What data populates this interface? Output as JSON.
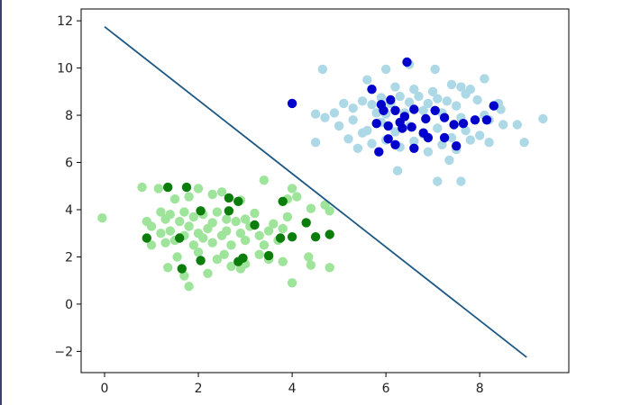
{
  "chart_data": {
    "type": "scatter",
    "title": "",
    "xlabel": "",
    "ylabel": "",
    "xlim": [
      -0.5,
      9.9
    ],
    "ylim": [
      -2.9,
      12.5
    ],
    "xticks": [
      0,
      2,
      4,
      6,
      8
    ],
    "yticks": [
      -2,
      0,
      2,
      4,
      6,
      8,
      10,
      12
    ],
    "grid": false,
    "legend": "none",
    "series": [
      {
        "color": "#9ee49b",
        "points": [
          [
            -0.05,
            3.65
          ],
          [
            0.8,
            4.95
          ],
          [
            1.15,
            4.9
          ],
          [
            1.5,
            4.45
          ],
          [
            1.8,
            4.55
          ],
          [
            2.0,
            4.9
          ],
          [
            2.3,
            4.65
          ],
          [
            2.5,
            4.75
          ],
          [
            2.9,
            4.4
          ],
          [
            3.4,
            5.25
          ],
          [
            3.9,
            4.45
          ],
          [
            4.0,
            4.9
          ],
          [
            4.1,
            4.55
          ],
          [
            4.4,
            4.05
          ],
          [
            4.7,
            4.2
          ],
          [
            4.8,
            3.95
          ],
          [
            0.9,
            3.5
          ],
          [
            1.0,
            3.3
          ],
          [
            1.2,
            3.9
          ],
          [
            1.3,
            3.6
          ],
          [
            1.4,
            3.8
          ],
          [
            1.6,
            3.5
          ],
          [
            1.7,
            3.9
          ],
          [
            1.9,
            3.7
          ],
          [
            2.1,
            3.8
          ],
          [
            2.3,
            3.45
          ],
          [
            2.4,
            3.9
          ],
          [
            2.6,
            3.6
          ],
          [
            2.8,
            3.5
          ],
          [
            3.0,
            3.6
          ],
          [
            3.2,
            3.85
          ],
          [
            3.6,
            3.4
          ],
          [
            3.9,
            3.7
          ],
          [
            1.0,
            2.5
          ],
          [
            1.2,
            3.0
          ],
          [
            1.3,
            2.6
          ],
          [
            1.4,
            3.1
          ],
          [
            1.5,
            2.7
          ],
          [
            1.7,
            2.9
          ],
          [
            1.8,
            3.3
          ],
          [
            1.9,
            2.5
          ],
          [
            2.0,
            3.0
          ],
          [
            2.1,
            2.8
          ],
          [
            2.2,
            3.2
          ],
          [
            2.3,
            2.6
          ],
          [
            2.5,
            2.9
          ],
          [
            2.6,
            3.1
          ],
          [
            2.7,
            2.5
          ],
          [
            2.9,
            3.0
          ],
          [
            3.0,
            2.7
          ],
          [
            3.1,
            3.3
          ],
          [
            3.3,
            2.9
          ],
          [
            3.4,
            2.5
          ],
          [
            3.5,
            3.1
          ],
          [
            3.7,
            2.7
          ],
          [
            3.8,
            3.2
          ],
          [
            1.35,
            1.55
          ],
          [
            1.55,
            2.0
          ],
          [
            1.7,
            1.2
          ],
          [
            1.8,
            0.75
          ],
          [
            2.0,
            2.2
          ],
          [
            2.2,
            1.3
          ],
          [
            2.4,
            1.9
          ],
          [
            2.55,
            2.1
          ],
          [
            2.7,
            1.6
          ],
          [
            2.9,
            1.5
          ],
          [
            3.0,
            1.7
          ],
          [
            3.3,
            2.1
          ],
          [
            3.5,
            1.9
          ],
          [
            3.8,
            1.8
          ],
          [
            4.0,
            0.9
          ],
          [
            4.35,
            2.0
          ],
          [
            4.4,
            1.65
          ],
          [
            4.8,
            1.55
          ]
        ]
      },
      {
        "color": "#0a7d0a",
        "points": [
          [
            1.35,
            4.95
          ],
          [
            1.75,
            4.95
          ],
          [
            2.65,
            4.5
          ],
          [
            2.85,
            4.35
          ],
          [
            3.8,
            4.35
          ],
          [
            2.05,
            3.95
          ],
          [
            2.65,
            3.95
          ],
          [
            3.2,
            3.35
          ],
          [
            4.3,
            3.45
          ],
          [
            0.9,
            2.8
          ],
          [
            1.6,
            2.8
          ],
          [
            3.75,
            2.8
          ],
          [
            4.8,
            2.95
          ],
          [
            1.65,
            1.5
          ],
          [
            2.05,
            1.85
          ],
          [
            2.95,
            1.95
          ],
          [
            3.5,
            2.05
          ],
          [
            4.5,
            2.85
          ],
          [
            4.0,
            2.85
          ],
          [
            2.85,
            1.8
          ]
        ]
      },
      {
        "color": "#add8e6",
        "points": [
          [
            4.65,
            9.95
          ],
          [
            5.6,
            9.5
          ],
          [
            6.0,
            9.95
          ],
          [
            6.5,
            10.15
          ],
          [
            7.05,
            9.95
          ],
          [
            7.6,
            9.2
          ],
          [
            8.1,
            9.55
          ],
          [
            8.45,
            8.25
          ],
          [
            9.35,
            7.85
          ],
          [
            8.95,
            6.85
          ],
          [
            8.5,
            7.6
          ],
          [
            8.4,
            8.5
          ],
          [
            7.95,
            8.65
          ],
          [
            7.7,
            8.9
          ],
          [
            7.5,
            8.4
          ],
          [
            7.3,
            8.6
          ],
          [
            7.1,
            8.7
          ],
          [
            6.9,
            8.5
          ],
          [
            6.7,
            8.8
          ],
          [
            6.5,
            8.55
          ],
          [
            6.3,
            8.8
          ],
          [
            6.1,
            8.5
          ],
          [
            5.9,
            8.75
          ],
          [
            5.7,
            8.45
          ],
          [
            5.5,
            8.6
          ],
          [
            5.3,
            8.3
          ],
          [
            5.1,
            8.5
          ],
          [
            4.9,
            8.1
          ],
          [
            4.7,
            7.9
          ],
          [
            4.5,
            8.05
          ],
          [
            5.0,
            7.55
          ],
          [
            5.3,
            7.8
          ],
          [
            5.6,
            7.35
          ],
          [
            5.9,
            7.7
          ],
          [
            6.2,
            7.3
          ],
          [
            6.5,
            7.55
          ],
          [
            6.8,
            7.2
          ],
          [
            7.1,
            7.45
          ],
          [
            7.4,
            7.05
          ],
          [
            7.7,
            7.35
          ],
          [
            8.0,
            7.15
          ],
          [
            8.2,
            6.85
          ],
          [
            6.0,
            6.95
          ],
          [
            6.3,
            6.65
          ],
          [
            6.6,
            6.9
          ],
          [
            6.9,
            6.45
          ],
          [
            7.2,
            6.75
          ],
          [
            7.5,
            6.55
          ],
          [
            7.8,
            6.95
          ],
          [
            5.4,
            6.6
          ],
          [
            5.7,
            6.8
          ],
          [
            4.5,
            6.85
          ],
          [
            6.25,
            5.65
          ],
          [
            7.1,
            5.2
          ],
          [
            7.35,
            6.1
          ],
          [
            7.6,
            5.2
          ],
          [
            8.2,
            7.8
          ],
          [
            8.8,
            7.6
          ],
          [
            6.0,
            8.05
          ],
          [
            6.4,
            8.1
          ],
          [
            6.8,
            8.2
          ],
          [
            7.2,
            8.1
          ],
          [
            7.6,
            7.9
          ],
          [
            8.1,
            8.0
          ],
          [
            5.8,
            8.1
          ],
          [
            6.2,
            9.2
          ],
          [
            6.6,
            9.1
          ],
          [
            7.0,
            9.0
          ],
          [
            7.4,
            9.3
          ],
          [
            7.8,
            9.1
          ],
          [
            5.2,
            7.0
          ],
          [
            5.5,
            7.25
          ]
        ]
      },
      {
        "color": "#0000cc",
        "points": [
          [
            4.0,
            8.5
          ],
          [
            5.7,
            9.1
          ],
          [
            5.9,
            8.45
          ],
          [
            6.1,
            8.65
          ],
          [
            6.2,
            8.2
          ],
          [
            6.4,
            7.95
          ],
          [
            6.6,
            8.25
          ],
          [
            6.85,
            7.85
          ],
          [
            7.05,
            8.2
          ],
          [
            7.25,
            7.9
          ],
          [
            7.45,
            7.6
          ],
          [
            7.65,
            7.65
          ],
          [
            7.9,
            7.8
          ],
          [
            8.15,
            7.8
          ],
          [
            8.3,
            8.4
          ],
          [
            6.05,
            7.55
          ],
          [
            6.3,
            7.7
          ],
          [
            6.55,
            7.5
          ],
          [
            6.8,
            7.25
          ],
          [
            5.8,
            7.65
          ],
          [
            6.45,
            10.25
          ],
          [
            7.5,
            6.7
          ],
          [
            6.05,
            7.0
          ],
          [
            6.2,
            6.75
          ],
          [
            5.85,
            6.45
          ],
          [
            6.6,
            6.6
          ],
          [
            6.9,
            7.05
          ],
          [
            7.25,
            7.05
          ],
          [
            5.95,
            8.2
          ],
          [
            6.35,
            7.45
          ]
        ]
      }
    ],
    "lines": [
      {
        "color": "#1f5a86",
        "points": [
          [
            0.0,
            11.75
          ],
          [
            9.0,
            -2.25
          ]
        ]
      }
    ]
  }
}
